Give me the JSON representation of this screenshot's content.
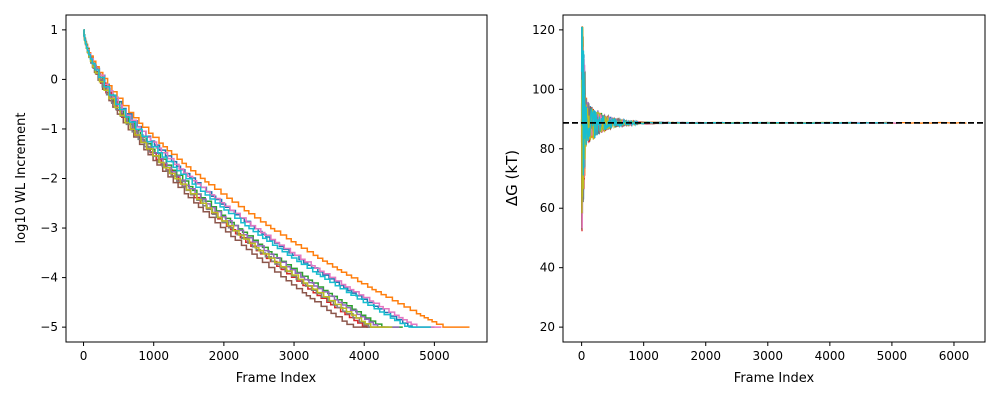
{
  "chart_data": [
    {
      "type": "line",
      "title": "",
      "xlabel": "Frame Index",
      "ylabel": "log10 WL Increment",
      "xlim": [
        -250,
        5750
      ],
      "ylim": [
        -5.3,
        1.3
      ],
      "xticks": [
        0,
        1000,
        2000,
        3000,
        4000,
        5000
      ],
      "yticks": [
        1,
        0,
        -1,
        -2,
        -3,
        -4,
        -5
      ],
      "grid": false,
      "legend": "none",
      "colors": [
        "#1f77b4",
        "#ff7f0e",
        "#2ca02c",
        "#d62728",
        "#9467bd",
        "#8c564b",
        "#e377c2",
        "#7f7f7f",
        "#bcbd22",
        "#17becf"
      ],
      "step_interval_scale": 0.93,
      "series": [
        {
          "color": "#1f77b4",
          "end_x": 5000
        },
        {
          "color": "#ff7f0e",
          "end_x": 5500
        },
        {
          "color": "#2ca02c",
          "end_x": 4550
        },
        {
          "color": "#d62728",
          "end_x": 4300
        },
        {
          "color": "#9467bd",
          "end_x": 4500
        },
        {
          "color": "#8c564b",
          "end_x": 4100
        },
        {
          "color": "#e377c2",
          "end_x": 5100
        },
        {
          "color": "#7f7f7f",
          "end_x": 4350
        },
        {
          "color": "#bcbd22",
          "end_x": 4400
        },
        {
          "color": "#17becf",
          "end_x": 4950
        }
      ]
    },
    {
      "type": "line",
      "title": "",
      "xlabel": "Frame Index",
      "ylabel": "ΔG (kT)",
      "xlim": [
        -300,
        6500
      ],
      "ylim": [
        15,
        125
      ],
      "xticks": [
        0,
        1000,
        2000,
        3000,
        4000,
        5000,
        6000
      ],
      "yticks": [
        20,
        40,
        60,
        80,
        100,
        120
      ],
      "grid": false,
      "legend": "none",
      "reference_line": {
        "y": 88.7,
        "style": "dashed",
        "color": "#000000"
      },
      "converged_value": 88.7,
      "colors": [
        "#1f77b4",
        "#ff7f0e",
        "#2ca02c",
        "#d62728",
        "#9467bd",
        "#8c564b",
        "#e377c2",
        "#7f7f7f",
        "#bcbd22",
        "#17becf"
      ],
      "series": [
        {
          "color": "#1f77b4",
          "end_x": 5000
        },
        {
          "color": "#ff7f0e",
          "end_x": 6200
        },
        {
          "color": "#2ca02c",
          "end_x": 4550
        },
        {
          "color": "#d62728",
          "end_x": 4300
        },
        {
          "color": "#9467bd",
          "end_x": 4500
        },
        {
          "color": "#8c564b",
          "end_x": 4100
        },
        {
          "color": "#e377c2",
          "end_x": 5100
        },
        {
          "color": "#7f7f7f",
          "end_x": 4350
        },
        {
          "color": "#bcbd22",
          "end_x": 4400
        },
        {
          "color": "#17becf",
          "end_x": 4950
        }
      ]
    }
  ]
}
